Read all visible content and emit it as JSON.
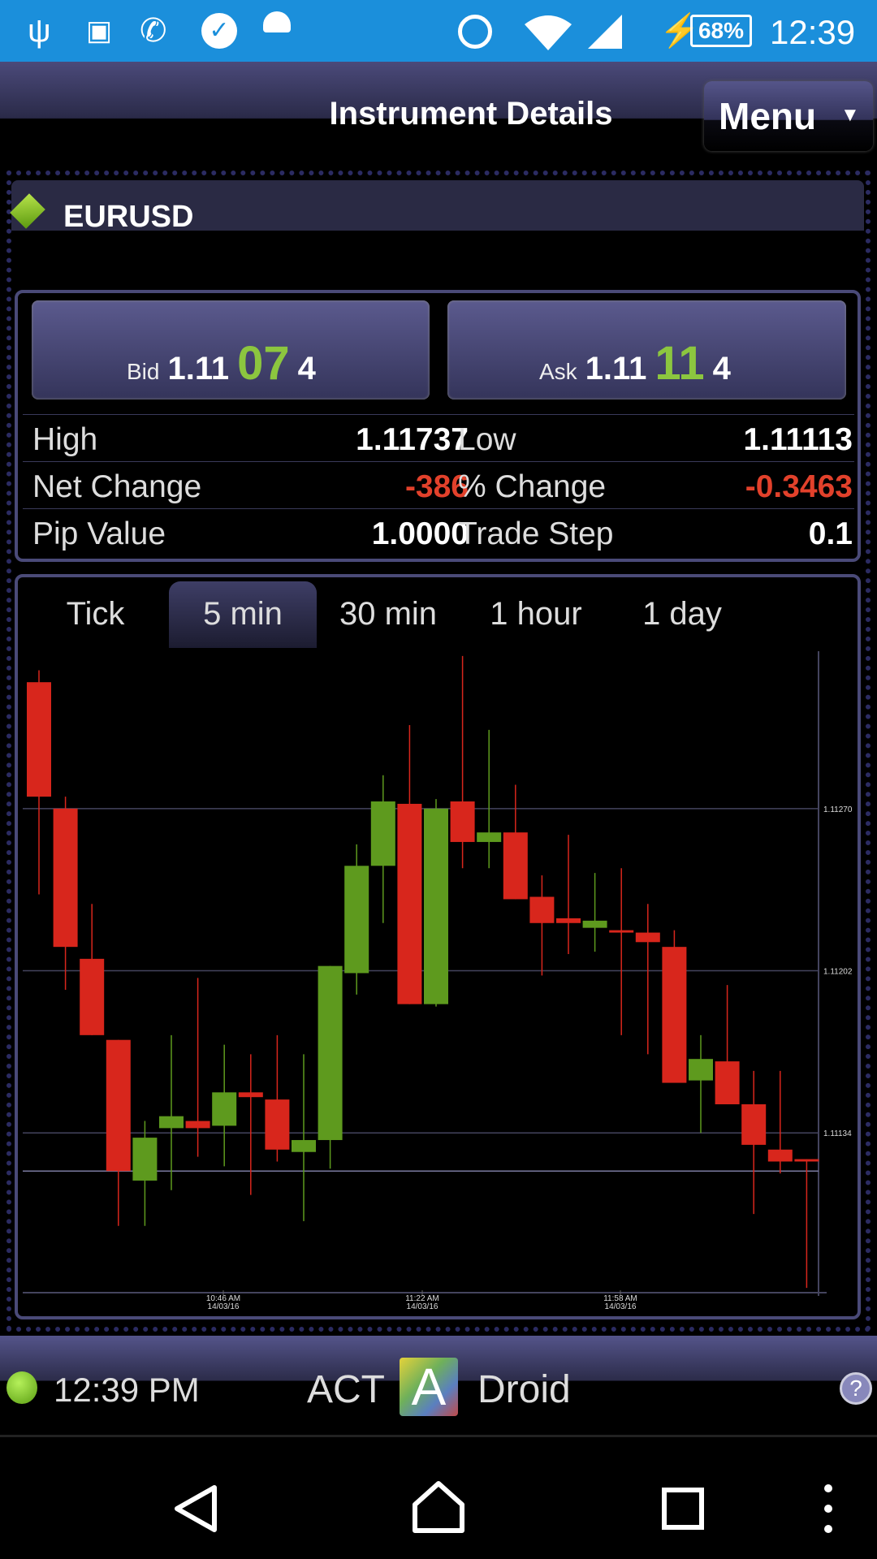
{
  "status_bar": {
    "icons": [
      "usb-icon",
      "image-icon",
      "wifi-call-icon",
      "task-check-icon",
      "android-icon",
      "alarm-icon",
      "wifi-icon",
      "signal-icon",
      "charging-icon"
    ],
    "battery": "68%",
    "time": "12:39",
    "color": "#1b8fdb"
  },
  "header": {
    "title": "Instrument Details",
    "menu_label": "Menu"
  },
  "instrument": {
    "symbol": "EURUSD",
    "status_color": "#8cc63f"
  },
  "quote": {
    "bid": {
      "label": "Bid",
      "prefix": "1.11",
      "big": "07",
      "suffix": "4"
    },
    "ask": {
      "label": "Ask",
      "prefix": "1.11",
      "big": "11",
      "suffix": "4"
    },
    "accent": "#8cc63f"
  },
  "stats": [
    {
      "label": "High",
      "value": "1.11737",
      "label2": "Low",
      "value2": "1.11113"
    },
    {
      "label": "Net Change",
      "value": "-386",
      "label2": "% Change",
      "value2": "-0.3463"
    },
    {
      "label": "Pip Value",
      "value": "1.0000",
      "label2": "Trade Step",
      "value2": "0.1"
    }
  ],
  "tabs": [
    {
      "label": "Tick",
      "selected": false
    },
    {
      "label": "5 min",
      "selected": true
    },
    {
      "label": "30 min",
      "selected": false
    },
    {
      "label": "1 hour",
      "selected": false
    },
    {
      "label": "1 day",
      "selected": false
    }
  ],
  "chart_data": {
    "type": "candlestick",
    "interval": "5 min",
    "ylim": [
      1.11067,
      1.11336
    ],
    "y_ticks": [
      {
        "value": 1.1127,
        "label": "1.11270"
      },
      {
        "value": 1.11202,
        "label": "1.11202"
      },
      {
        "value": 1.11134,
        "label": "1.11134"
      }
    ],
    "x_ticks": [
      {
        "time": "10:46 AM",
        "date": "14/03/16"
      },
      {
        "time": "11:22 AM",
        "date": "14/03/16"
      },
      {
        "time": "11:58 AM",
        "date": "14/03/16"
      }
    ],
    "reference_line": 1.11118,
    "up_color": "#5e9a1e",
    "down_color": "#d8261c",
    "candles": [
      {
        "o": 1.11323,
        "h": 1.11328,
        "l": 1.11234,
        "c": 1.11275
      },
      {
        "o": 1.1127,
        "h": 1.11275,
        "l": 1.11194,
        "c": 1.11212
      },
      {
        "o": 1.11207,
        "h": 1.1123,
        "l": 1.11175,
        "c": 1.11175
      },
      {
        "o": 1.11173,
        "h": 1.11173,
        "l": 1.11095,
        "c": 1.11118
      },
      {
        "o": 1.11114,
        "h": 1.11139,
        "l": 1.11095,
        "c": 1.11132
      },
      {
        "o": 1.11136,
        "h": 1.11175,
        "l": 1.1111,
        "c": 1.11141
      },
      {
        "o": 1.11139,
        "h": 1.11199,
        "l": 1.11124,
        "c": 1.11136
      },
      {
        "o": 1.11137,
        "h": 1.11171,
        "l": 1.1112,
        "c": 1.11151
      },
      {
        "o": 1.11151,
        "h": 1.11167,
        "l": 1.11108,
        "c": 1.11149
      },
      {
        "o": 1.11148,
        "h": 1.11175,
        "l": 1.11122,
        "c": 1.11127
      },
      {
        "o": 1.11126,
        "h": 1.11167,
        "l": 1.11097,
        "c": 1.11131
      },
      {
        "o": 1.11131,
        "h": 1.11204,
        "l": 1.11119,
        "c": 1.11204
      },
      {
        "o": 1.11201,
        "h": 1.11255,
        "l": 1.11192,
        "c": 1.11246
      },
      {
        "o": 1.11246,
        "h": 1.11284,
        "l": 1.11222,
        "c": 1.11273
      },
      {
        "o": 1.11272,
        "h": 1.11305,
        "l": 1.11188,
        "c": 1.11188
      },
      {
        "o": 1.11188,
        "h": 1.11274,
        "l": 1.11187,
        "c": 1.1127
      },
      {
        "o": 1.11273,
        "h": 1.11334,
        "l": 1.11245,
        "c": 1.11256
      },
      {
        "o": 1.11256,
        "h": 1.11303,
        "l": 1.11245,
        "c": 1.1126
      },
      {
        "o": 1.1126,
        "h": 1.1128,
        "l": 1.11232,
        "c": 1.11232
      },
      {
        "o": 1.11233,
        "h": 1.11242,
        "l": 1.112,
        "c": 1.11222
      },
      {
        "o": 1.11224,
        "h": 1.11259,
        "l": 1.11209,
        "c": 1.11222
      },
      {
        "o": 1.1122,
        "h": 1.11243,
        "l": 1.1121,
        "c": 1.11223
      },
      {
        "o": 1.11219,
        "h": 1.11245,
        "l": 1.11175,
        "c": 1.11218
      },
      {
        "o": 1.11218,
        "h": 1.1123,
        "l": 1.11167,
        "c": 1.11214
      },
      {
        "o": 1.11212,
        "h": 1.11219,
        "l": 1.11155,
        "c": 1.11155
      },
      {
        "o": 1.11156,
        "h": 1.11175,
        "l": 1.11134,
        "c": 1.11165
      },
      {
        "o": 1.11164,
        "h": 1.11196,
        "l": 1.11146,
        "c": 1.11146
      },
      {
        "o": 1.11146,
        "h": 1.1116,
        "l": 1.111,
        "c": 1.11129
      },
      {
        "o": 1.11127,
        "h": 1.1116,
        "l": 1.11117,
        "c": 1.11122
      },
      {
        "o": 1.11123,
        "h": 1.11123,
        "l": 1.11069,
        "c": 1.11122
      }
    ]
  },
  "footer": {
    "time": "12:39 PM",
    "brand_left": "ACT",
    "brand_logo": "A",
    "brand_right": "Droid",
    "connection_color": "#7dc629"
  },
  "nav": {
    "icons": [
      "back-icon",
      "home-icon",
      "recents-icon",
      "overflow-icon"
    ]
  }
}
